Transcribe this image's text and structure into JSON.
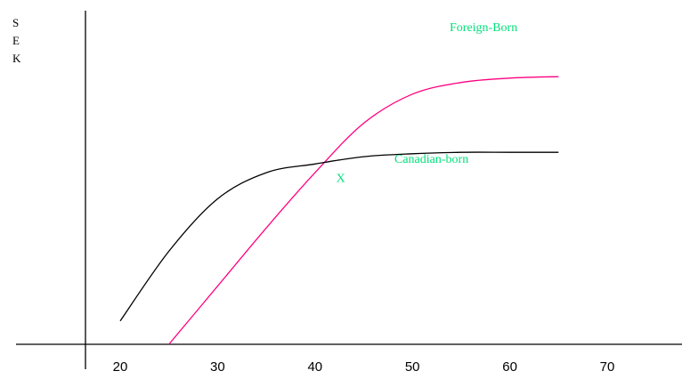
{
  "chart_data": {
    "type": "line",
    "title": "",
    "xlabel": "",
    "ylabel": "SEK",
    "xlim": [
      10,
      80
    ],
    "ylim": [
      0,
      10
    ],
    "x_ticks": [
      "20",
      "30",
      "40",
      "50",
      "60",
      "70"
    ],
    "y_ticks": [],
    "grid": false,
    "series": [
      {
        "name": "Foreign-Born",
        "color": "#ff0080",
        "x": [
          25,
          30,
          35,
          40,
          45,
          50,
          55,
          60,
          65
        ],
        "y": [
          0,
          2.0,
          4.0,
          5.9,
          7.6,
          8.6,
          9.0,
          9.15,
          9.2
        ]
      },
      {
        "name": "Canadian-born",
        "color": "#000000",
        "x": [
          20,
          25,
          30,
          35,
          40,
          45,
          50,
          55,
          60,
          65
        ],
        "y": [
          0.8,
          3.2,
          5.0,
          5.9,
          6.2,
          6.45,
          6.55,
          6.6,
          6.6,
          6.6
        ]
      }
    ],
    "annotations": [
      {
        "text": "X",
        "x": 42,
        "y": 6.2
      }
    ],
    "label_color": "#00e07a"
  }
}
